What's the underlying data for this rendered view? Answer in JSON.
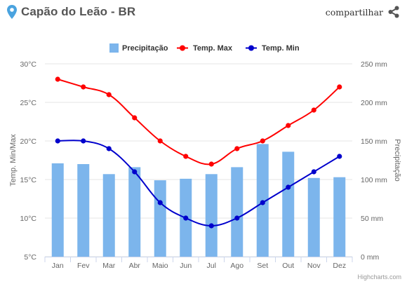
{
  "header": {
    "title": "Capão do Leão - BR",
    "share_label": "compartilhar",
    "location_icon": "map-pin-icon",
    "share_icon": "share-icon"
  },
  "credit": "Highcharts.com",
  "colors": {
    "precip": "#7cb5ec",
    "tmax": "#ff0000",
    "tmin": "#0000cc",
    "title": "#555555",
    "pin": "#4aa3df",
    "grid": "#e6e6e6",
    "axis_text": "#666666"
  },
  "chart_data": {
    "type": "bar+line",
    "categories": [
      "Jan",
      "Fev",
      "Mar",
      "Abr",
      "Maio",
      "Jun",
      "Jul",
      "Ago",
      "Set",
      "Out",
      "Nov",
      "Dez"
    ],
    "legend": [
      "Precipitação",
      "Temp. Max",
      "Temp. Min"
    ],
    "legend_position": "top-center",
    "series": [
      {
        "name": "Precipitação",
        "type": "bar",
        "axis": "right",
        "values": [
          121,
          120,
          107,
          116,
          99,
          101,
          107,
          116,
          146,
          136,
          102,
          103
        ]
      },
      {
        "name": "Temp. Max",
        "type": "line",
        "axis": "left",
        "values": [
          28,
          27,
          26,
          23,
          20,
          18,
          17,
          19,
          20,
          22,
          24,
          27
        ]
      },
      {
        "name": "Temp. Min",
        "type": "line",
        "axis": "left",
        "values": [
          20,
          20,
          19,
          16,
          12,
          10,
          9,
          10,
          12,
          14,
          16,
          18
        ]
      }
    ],
    "y_left": {
      "label": "Temp. Min/Max",
      "range": [
        5,
        30
      ],
      "ticks": [
        "5°C",
        "10°C",
        "15°C",
        "20°C",
        "25°C",
        "30°C"
      ],
      "tick_values": [
        5,
        10,
        15,
        20,
        25,
        30
      ]
    },
    "y_right": {
      "label": "Precipitação",
      "range": [
        0,
        250
      ],
      "ticks": [
        "0 mm",
        "50 mm",
        "100 mm",
        "150 mm",
        "200 mm",
        "250 mm"
      ],
      "tick_values": [
        0,
        50,
        100,
        150,
        200,
        250
      ]
    },
    "grid": true
  }
}
